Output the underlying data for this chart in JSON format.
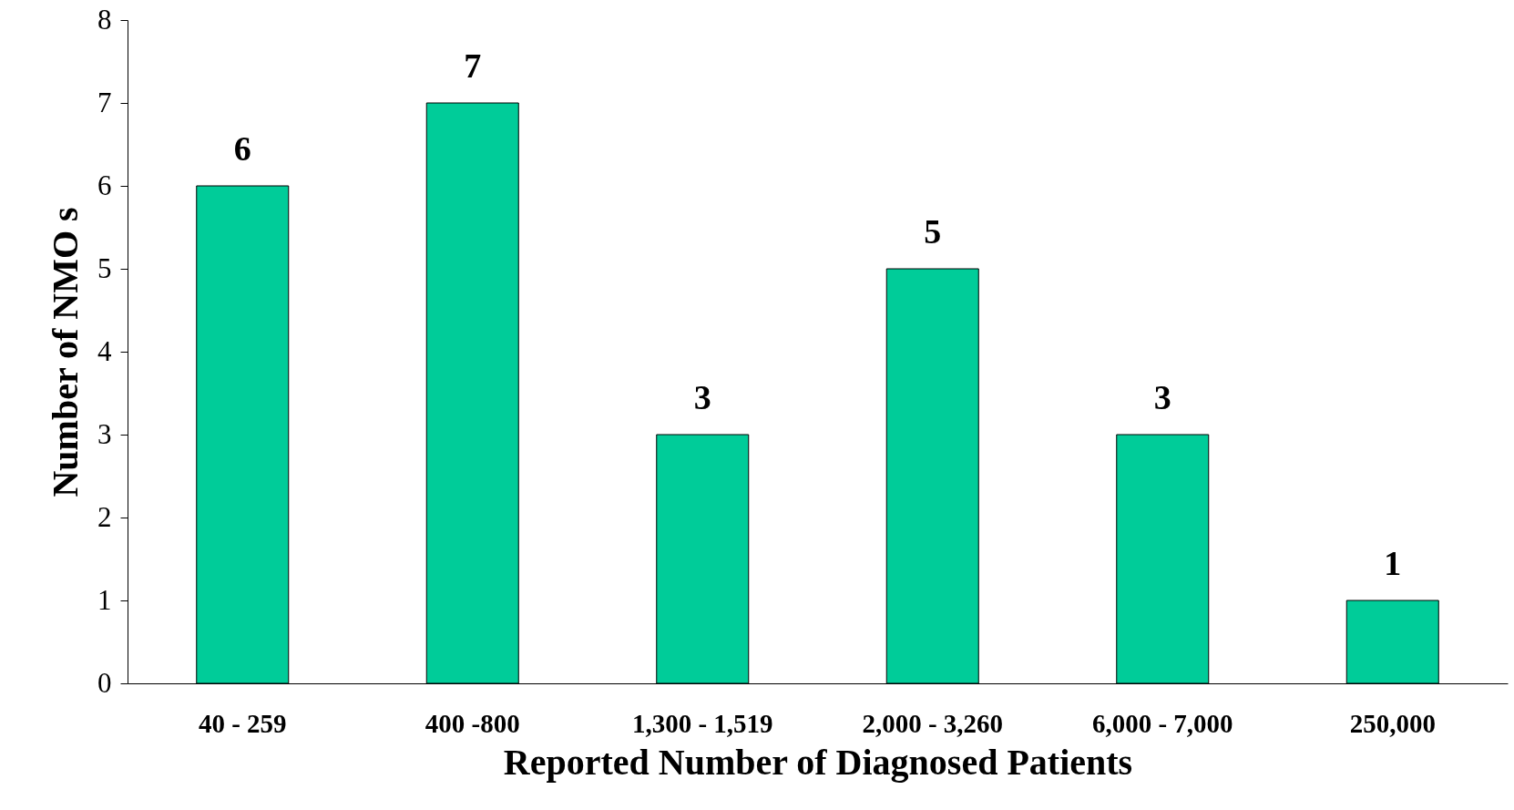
{
  "chart_data": {
    "type": "bar",
    "xlabel": "Reported Number of Diagnosed Patients",
    "ylabel": "Number of NMO s",
    "categories": [
      "40 - 259",
      "400 -800",
      "1,300 - 1,519",
      "2,000 - 3,260",
      "6,000 - 7,000",
      "250,000"
    ],
    "values": [
      6,
      7,
      3,
      5,
      3,
      1
    ],
    "color": "#00cc99",
    "ylim": [
      0,
      8
    ],
    "yticks": [
      0,
      1,
      2,
      3,
      4,
      5,
      6,
      7,
      8
    ],
    "grid": false,
    "data_labels": true
  }
}
